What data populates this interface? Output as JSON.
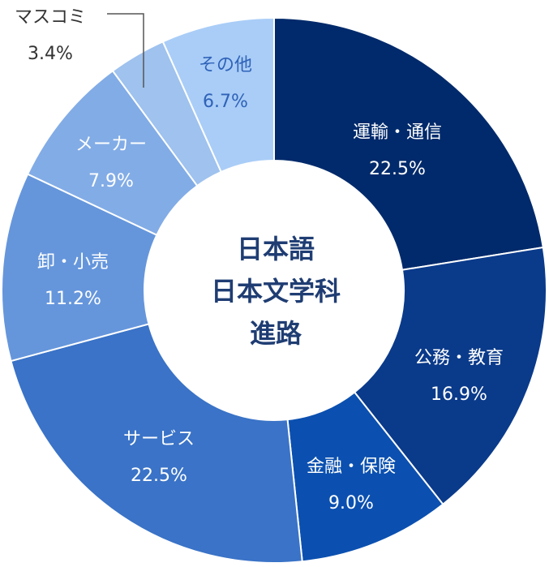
{
  "chart_data": {
    "type": "pie",
    "title": "",
    "center_text": [
      "日本語",
      "日本文学科",
      "進路"
    ],
    "slices": [
      {
        "label": "運輸・通信",
        "value": 22.5,
        "value_text": "22.5%",
        "color": "#002a6b",
        "text_color": "#ffffff"
      },
      {
        "label": "公務・教育",
        "value": 16.9,
        "value_text": "16.9%",
        "color": "#0a3a8a",
        "text_color": "#ffffff"
      },
      {
        "label": "金融・保険",
        "value": 9.0,
        "value_text": "9.0%",
        "color": "#0b50b0",
        "text_color": "#ffffff"
      },
      {
        "label": "サービス",
        "value": 22.5,
        "value_text": "22.5%",
        "color": "#3a73c7",
        "text_color": "#ffffff"
      },
      {
        "label": "卸・小売",
        "value": 11.2,
        "value_text": "11.2%",
        "color": "#6596dc",
        "text_color": "#ffffff"
      },
      {
        "label": "メーカー",
        "value": 7.9,
        "value_text": "7.9%",
        "color": "#82ace6",
        "text_color": "#ffffff"
      },
      {
        "label": "マスコミ",
        "value": 3.4,
        "value_text": "3.4%",
        "color": "#9fc2ee",
        "text_color": "#333333"
      },
      {
        "label": "その他",
        "value": 6.7,
        "value_text": "6.7%",
        "color": "#a9cdf7",
        "text_color": "#2f62b8"
      }
    ]
  }
}
